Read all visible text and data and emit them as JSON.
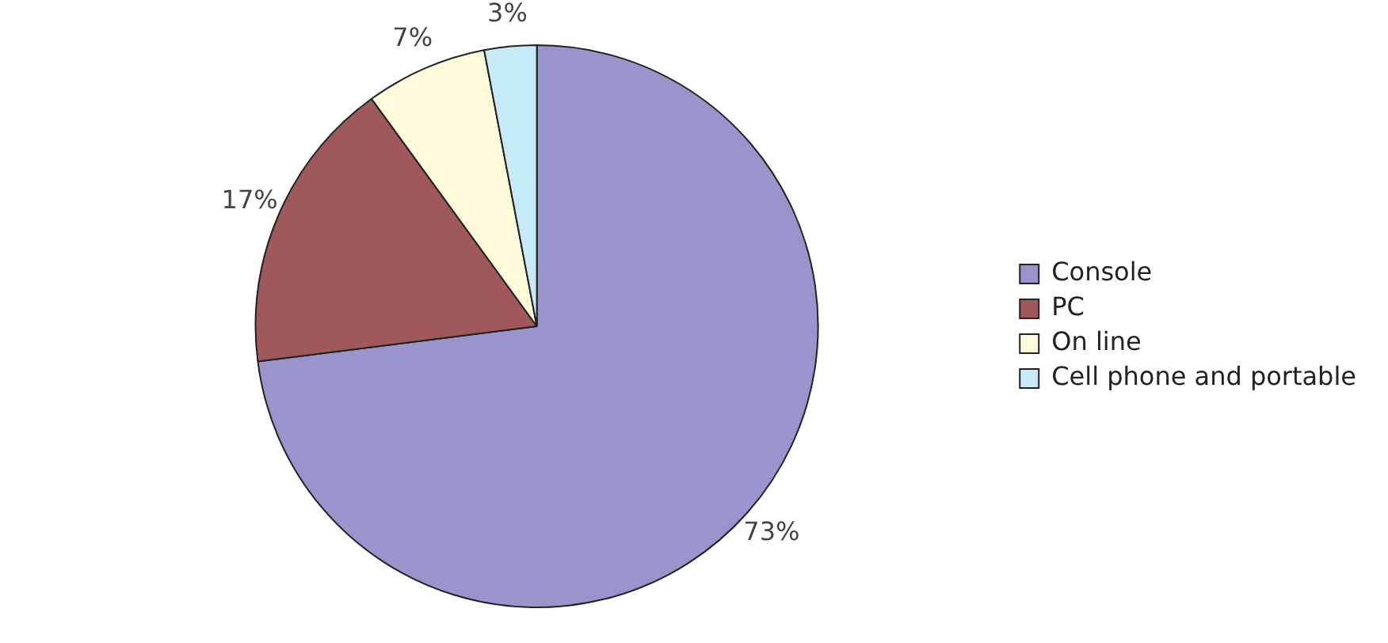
{
  "chart_data": {
    "type": "pie",
    "categories": [
      "Console",
      "PC",
      "On line",
      "Cell phone and portable"
    ],
    "values": [
      73,
      17,
      7,
      3
    ],
    "colors": [
      "#9a94cc",
      "#a0585a",
      "#fdfbd9",
      "#c6ebf6"
    ],
    "value_labels": [
      "73%",
      "17%",
      "7%",
      "3%"
    ],
    "legend": "right"
  }
}
